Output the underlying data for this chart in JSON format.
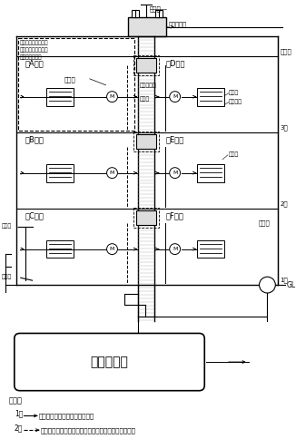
{
  "bg_color": "#ffffff",
  "fig_w": 3.26,
  "fig_h": 4.84,
  "dpi": 100,
  "roof_label": "屋上階",
  "f3_label": "3階",
  "f2_label": "2階",
  "f1_label": "1階",
  "GL_label": "GL",
  "roomA": "（A室）",
  "roomB": "（B室）",
  "roomC": "（C室）",
  "roomD": "（D室）",
  "roomE": "（E室）",
  "roomF": "（F室）",
  "relay_tank": "中継タンク",
  "vent_pipe": "通気管",
  "vent_pipe2": "通気管",
  "fill_port": "注入口",
  "return_pipe": "戻り管",
  "separate_tank": "戸別タンク",
  "supply_pipe": "供給管",
  "supply_pipe2": "供給管",
  "flow_meter": "流量計",
  "burner": "燃焼機器",
  "pump": "ポンプ",
  "main_tank": "専用タンク",
  "fire_law": "火災予防条例により\n火気使用設備として\n規制される部分",
  "note_header": "〈注〉",
  "note1_prefix": "1．",
  "note1_text": "印は、油の流れる方向を示す。",
  "note2_prefix": "2．",
  "note2_text": "印は、油が過剰に供給された場合の掃還回路を示す。"
}
